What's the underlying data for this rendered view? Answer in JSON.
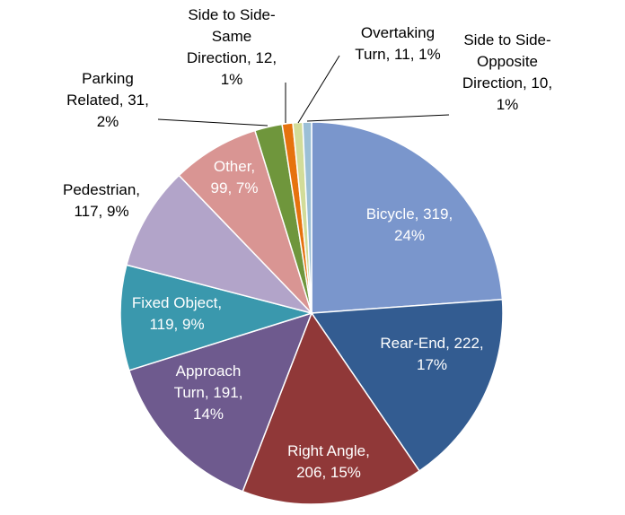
{
  "chart_data": {
    "type": "pie",
    "title": "",
    "start_angle_deg": 0,
    "direction": "clockwise",
    "slices": [
      {
        "name": "Bicycle",
        "value": 319,
        "percent": "24%",
        "color": "#7a96cc",
        "label_lines": [
          "Bicycle, 319,",
          "24%"
        ],
        "label_color": "#ffffff"
      },
      {
        "name": "Rear-End",
        "value": 222,
        "percent": "17%",
        "color": "#335c91",
        "label_lines": [
          "Rear-End, 222,",
          "17%"
        ],
        "label_color": "#ffffff"
      },
      {
        "name": "Right Angle",
        "value": 206,
        "percent": "15%",
        "color": "#903838",
        "label_lines": [
          "Right Angle,",
          "206, 15%"
        ],
        "label_color": "#ffffff"
      },
      {
        "name": "Approach Turn",
        "value": 191,
        "percent": "14%",
        "color": "#6e5a8e",
        "label_lines": [
          "Approach",
          "Turn, 191,",
          "14%"
        ],
        "label_color": "#ffffff"
      },
      {
        "name": "Fixed Object",
        "value": 119,
        "percent": "9%",
        "color": "#3a98ad",
        "label_lines": [
          "Fixed Object,",
          "119, 9%"
        ],
        "label_color": "#ffffff"
      },
      {
        "name": "Pedestrian",
        "value": 117,
        "percent": "9%",
        "color": "#b2a4c9",
        "label_lines": [
          "Pedestrian,",
          "117, 9%"
        ],
        "label_color": "#000000"
      },
      {
        "name": "Other",
        "value": 99,
        "percent": "7%",
        "color": "#d99593",
        "label_lines": [
          "Other,",
          "99, 7%"
        ],
        "label_color": "#ffffff"
      },
      {
        "name": "Parking Related",
        "value": 31,
        "percent": "2%",
        "color": "#6f963c",
        "label_lines": [
          "Parking",
          "Related, 31,",
          "2%"
        ],
        "label_color": "#000000"
      },
      {
        "name": "Side to Side-Same Direction",
        "value": 12,
        "percent": "1%",
        "color": "#e6720e",
        "label_lines": [
          "Side to Side-",
          "Same",
          "Direction, 12,",
          "1%"
        ],
        "label_color": "#000000"
      },
      {
        "name": "Overtaking Turn",
        "value": 11,
        "percent": "1%",
        "color": "#d2dc99",
        "label_lines": [
          "Overtaking",
          "Turn, 11, 1%"
        ],
        "label_color": "#000000"
      },
      {
        "name": "Side to Side-Opposite Direction",
        "value": 10,
        "percent": "1%",
        "color": "#9bbfd6",
        "label_lines": [
          "Side to Side-",
          "Opposite",
          "Direction, 10,",
          "1%"
        ],
        "label_color": "#000000"
      }
    ]
  }
}
